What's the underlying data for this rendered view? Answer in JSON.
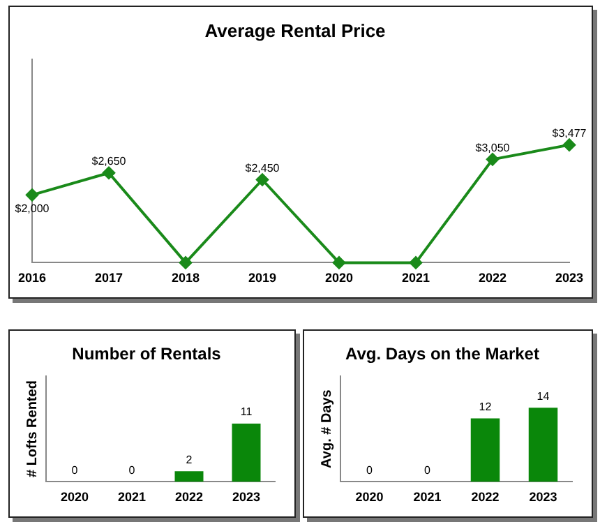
{
  "chart_data": [
    {
      "type": "line",
      "title": "Average Rental Price",
      "categories": [
        "2016",
        "2017",
        "2018",
        "2019",
        "2020",
        "2021",
        "2022",
        "2023"
      ],
      "series": [
        {
          "color": "#1a8a1a",
          "values": [
            2000,
            2650,
            0,
            2450,
            0,
            0,
            3050,
            3477
          ],
          "value_labels": [
            "$2,000",
            "$2,650",
            null,
            "$2,450",
            null,
            null,
            "$3,050",
            "$3,477"
          ]
        }
      ],
      "tick_labels": "x",
      "marker": "diamond",
      "grid": false,
      "legend": false
    },
    {
      "type": "bar",
      "title": "Number of Rentals",
      "ylabel": "# Lofts Rented",
      "categories": [
        "2020",
        "2021",
        "2022",
        "2023"
      ],
      "series": [
        {
          "color": "#0a870a",
          "values": [
            0,
            0,
            2,
            11
          ]
        }
      ],
      "ylim": [
        0,
        20
      ],
      "tick_labels": "x",
      "data_labels": true,
      "grid": false,
      "legend": false
    },
    {
      "type": "bar",
      "title": "Avg. Days on the Market",
      "ylabel": "Avg. # Days",
      "categories": [
        "2020",
        "2021",
        "2022",
        "2023"
      ],
      "series": [
        {
          "color": "#0a870a",
          "values": [
            0,
            0,
            12,
            14
          ]
        }
      ],
      "ylim": [
        0,
        20
      ],
      "tick_labels": "x",
      "data_labels": true,
      "grid": false,
      "legend": false
    }
  ]
}
